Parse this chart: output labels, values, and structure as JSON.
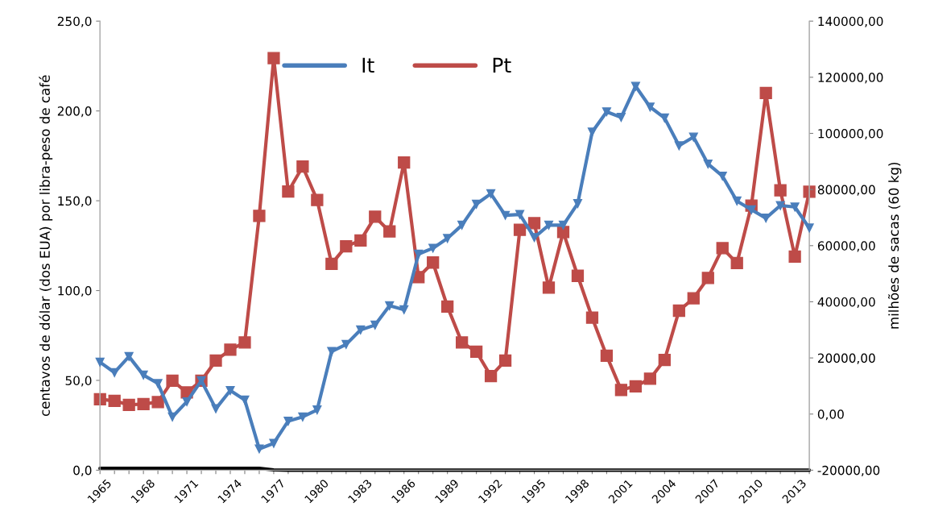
{
  "chart_data": {
    "type": "line",
    "ylabel": "centavos de dólar (dos EUA) por libra-peso de café",
    "y2label": "milhões de sacas (60 kg)",
    "x": [
      1965,
      1966,
      1967,
      1968,
      1969,
      1970,
      1971,
      1972,
      1973,
      1974,
      1975,
      1976,
      1977,
      1978,
      1979,
      1980,
      1981,
      1982,
      1983,
      1984,
      1985,
      1986,
      1987,
      1988,
      1989,
      1990,
      1991,
      1992,
      1993,
      1994,
      1995,
      1996,
      1997,
      1998,
      1999,
      2000,
      2001,
      2002,
      2003,
      2004,
      2005,
      2006,
      2007,
      2008,
      2009,
      2010,
      2011,
      2012,
      2013,
      2014
    ],
    "series": [
      {
        "name": "It",
        "color": "#4a7ebb",
        "axis": "y2",
        "marker": "triangle",
        "values": [
          18500,
          14800,
          20500,
          13900,
          10900,
          -1000,
          4400,
          11900,
          1900,
          8400,
          5000,
          -12400,
          -10400,
          -2500,
          -1000,
          1500,
          22300,
          24800,
          30000,
          31700,
          38600,
          37200,
          57000,
          59100,
          62600,
          67300,
          74800,
          78500,
          70800,
          71100,
          62900,
          67300,
          67300,
          75000,
          100500,
          107700,
          105700,
          116800,
          109400,
          105500,
          95600,
          98700,
          89100,
          84800,
          75900,
          72800,
          69800,
          74300,
          73800,
          66300
        ]
      },
      {
        "name": "Pt",
        "color": "#be4b48",
        "axis": "y",
        "marker": "square",
        "values": [
          39.5,
          38.6,
          36.4,
          36.8,
          37.9,
          49.8,
          43.3,
          49.8,
          61.0,
          67.1,
          71.1,
          141.6,
          229.4,
          155.1,
          169.0,
          150.4,
          114.9,
          124.6,
          127.9,
          141.1,
          132.9,
          171.3,
          107.5,
          115.6,
          91.1,
          71.1,
          66.0,
          52.4,
          61.0,
          133.8,
          137.5,
          101.6,
          132.6,
          108.2,
          84.9,
          63.7,
          44.7,
          46.7,
          50.9,
          61.4,
          88.8,
          95.7,
          107.0,
          123.6,
          115.3,
          147.3,
          210.0,
          155.8,
          118.9,
          155.0
        ]
      },
      {
        "color": "#000000",
        "axis": "y",
        "marker": "none",
        "values": [
          1,
          1,
          1,
          1,
          1,
          1,
          1,
          1,
          1,
          1,
          1,
          1,
          0.2,
          0,
          0,
          0,
          0,
          0,
          0,
          0,
          0,
          0,
          0,
          0,
          0,
          0,
          0,
          0,
          0,
          0,
          0,
          0,
          0,
          0,
          0,
          0,
          0,
          0,
          0,
          0,
          0,
          0,
          0,
          0,
          0,
          0,
          0,
          0,
          0,
          0
        ]
      }
    ],
    "xlim": [
      1965,
      2014
    ],
    "xticks": [
      1965,
      {
        "value": 1966,
        "label": null
      },
      {
        "value": 1967,
        "label": null
      },
      1968,
      {
        "value": 1969,
        "label": null
      },
      {
        "value": 1970,
        "label": null
      },
      1971,
      {
        "value": 1972,
        "label": null
      },
      {
        "value": 1973,
        "label": null
      },
      1974,
      {
        "value": 1975,
        "label": null
      },
      {
        "value": 1976,
        "label": null
      },
      1977,
      {
        "value": 1978,
        "label": null
      },
      {
        "value": 1979,
        "label": null
      },
      1980,
      {
        "value": 1981,
        "label": null
      },
      {
        "value": 1982,
        "label": null
      },
      1983,
      {
        "value": 1984,
        "label": null
      },
      {
        "value": 1985,
        "label": null
      },
      1986,
      {
        "value": 1987,
        "label": null
      },
      {
        "value": 1988,
        "label": null
      },
      1989,
      {
        "value": 1990,
        "label": null
      },
      {
        "value": 1991,
        "label": null
      },
      1992,
      {
        "value": 1993,
        "label": null
      },
      {
        "value": 1994,
        "label": null
      },
      1995,
      {
        "value": 1996,
        "label": null
      },
      {
        "value": 1997,
        "label": null
      },
      1998,
      {
        "value": 1999,
        "label": null
      },
      {
        "value": 2000,
        "label": null
      },
      2001,
      {
        "value": 2002,
        "label": null
      },
      {
        "value": 2003,
        "label": null
      },
      2004,
      {
        "value": 2005,
        "label": null
      },
      {
        "value": 2006,
        "label": null
      },
      2007,
      {
        "value": 2008,
        "label": null
      },
      {
        "value": 2009,
        "label": null
      },
      2010,
      {
        "value": 2011,
        "label": null
      },
      {
        "value": 2012,
        "label": null
      },
      2013,
      {
        "value": 2014,
        "label": null
      }
    ],
    "ylim": [
      0,
      250
    ],
    "yticks": [
      {
        "value": 0,
        "label": "0,0"
      },
      {
        "value": 50,
        "label": "50,0"
      },
      {
        "value": 100,
        "label": "100,0"
      },
      {
        "value": 150,
        "label": "150,0"
      },
      {
        "value": 200,
        "label": "200,0"
      },
      {
        "value": 250,
        "label": "250,0"
      }
    ],
    "y2lim": [
      -20000,
      140000
    ],
    "y2ticks": [
      {
        "value": -20000,
        "label": "-20000,00"
      },
      {
        "value": 0,
        "label": "0,00"
      },
      {
        "value": 20000,
        "label": "20000,00"
      },
      {
        "value": 40000,
        "label": "40000,00"
      },
      {
        "value": 60000,
        "label": "60000,00"
      },
      {
        "value": 80000,
        "label": "80000,00"
      },
      {
        "value": 100000,
        "label": "100000,00"
      },
      {
        "value": 120000,
        "label": "120000,00"
      },
      {
        "value": 140000,
        "label": "140000,00"
      }
    ],
    "grid": false,
    "legend": "top",
    "line_style": "solid"
  }
}
